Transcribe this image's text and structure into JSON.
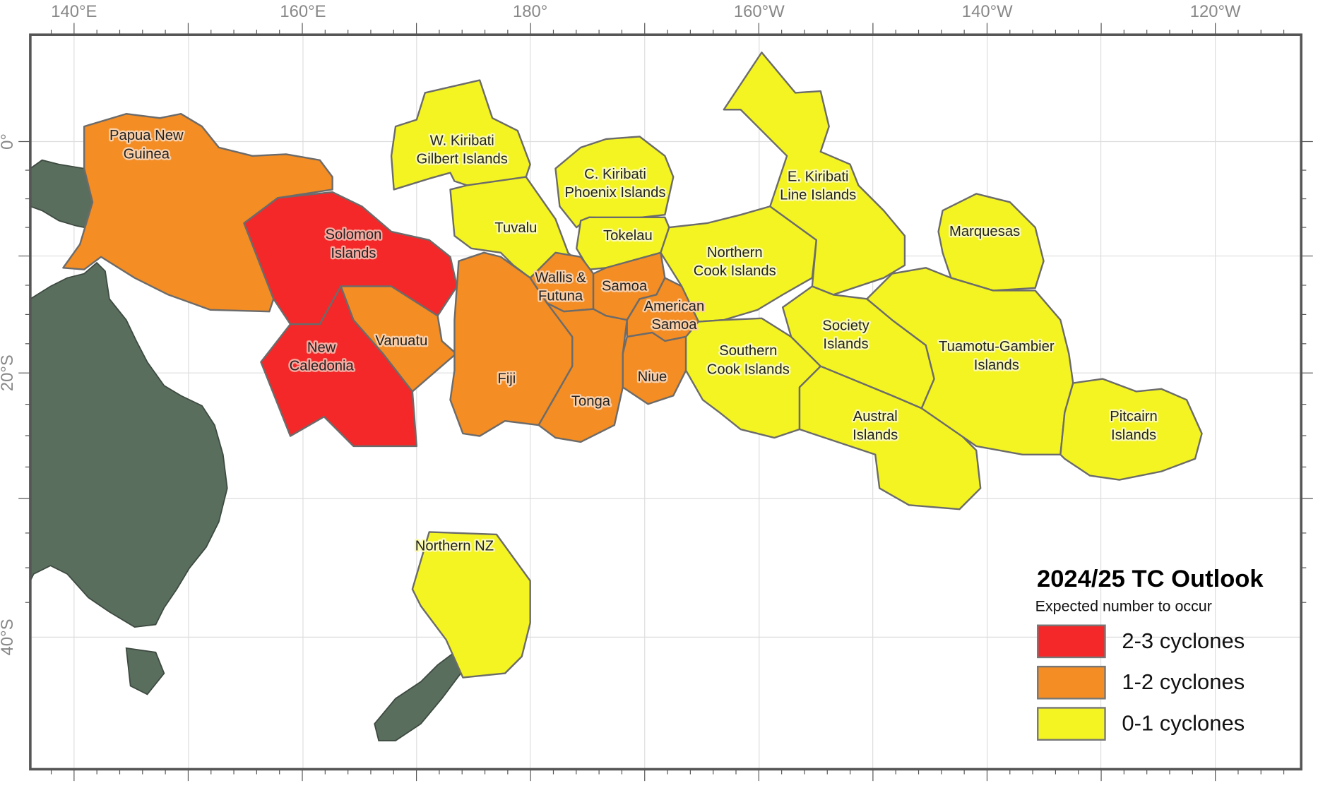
{
  "map": {
    "lon_labels": [
      "140°E",
      "160°E",
      "180°",
      "160°W",
      "140°W",
      "120°W"
    ],
    "lat_labels": [
      "0°",
      "20°S",
      "40°S"
    ],
    "colors": {
      "land": "#5a6e5e",
      "border": "#6b6b6b",
      "grid": "#dddddd"
    }
  },
  "legend": {
    "title": "2024/25 TC Outlook",
    "subtitle": "Expected number to occur",
    "items": [
      {
        "label": "2-3 cyclones",
        "color": "#f42828",
        "halo": "#f7aaa0"
      },
      {
        "label": "1-2 cyclones",
        "color": "#f38d24",
        "halo": "#f9cfa8"
      },
      {
        "label": "0-1 cyclones",
        "color": "#f4f423",
        "halo": "#fafab0"
      }
    ]
  },
  "regions": [
    {
      "name": "Papua New Guinea",
      "lines": [
        "Papua New",
        "Guinea"
      ],
      "category": 1
    },
    {
      "name": "Solomon Islands",
      "lines": [
        "Solomon",
        "Islands"
      ],
      "category": 0
    },
    {
      "name": "New Caledonia",
      "lines": [
        "New",
        "Caledonia"
      ],
      "category": 0
    },
    {
      "name": "Vanuatu",
      "lines": [
        "Vanuatu"
      ],
      "category": 1
    },
    {
      "name": "W. Kiribati Gilbert Islands",
      "lines": [
        "W. Kiribati",
        "Gilbert Islands"
      ],
      "category": 2
    },
    {
      "name": "Tuvalu",
      "lines": [
        "Tuvalu"
      ],
      "category": 2
    },
    {
      "name": "C. Kiribati Phoenix Islands",
      "lines": [
        "C. Kiribati",
        "Phoenix Islands"
      ],
      "category": 2
    },
    {
      "name": "Tokelau",
      "lines": [
        "Tokelau"
      ],
      "category": 2
    },
    {
      "name": "Fiji",
      "lines": [
        "Fiji"
      ],
      "category": 1
    },
    {
      "name": "Wallis & Futuna",
      "lines": [
        "Wallis &",
        "Futuna"
      ],
      "category": 1
    },
    {
      "name": "Samoa",
      "lines": [
        "Samoa"
      ],
      "category": 1
    },
    {
      "name": "Tonga",
      "lines": [
        "Tonga"
      ],
      "category": 1
    },
    {
      "name": "American Samoa",
      "lines": [
        "American",
        "Samoa"
      ],
      "category": 1
    },
    {
      "name": "Niue",
      "lines": [
        "Niue"
      ],
      "category": 1
    },
    {
      "name": "Northern NZ",
      "lines": [
        "Northern NZ"
      ],
      "category": 2
    },
    {
      "name": "Northern Cook Islands",
      "lines": [
        "Northern",
        "Cook Islands"
      ],
      "category": 2
    },
    {
      "name": "E. Kiribati Line Islands",
      "lines": [
        "E. Kiribati",
        "Line Islands"
      ],
      "category": 2
    },
    {
      "name": "Southern Cook Islands",
      "lines": [
        "Southern",
        "Cook Islands"
      ],
      "category": 2
    },
    {
      "name": "Society Islands",
      "lines": [
        "Society",
        "Islands"
      ],
      "category": 2
    },
    {
      "name": "Austral Islands",
      "lines": [
        "Austral",
        "Islands"
      ],
      "category": 2
    },
    {
      "name": "Marquesas",
      "lines": [
        "Marquesas"
      ],
      "category": 2
    },
    {
      "name": "Tuamotu-Gambier Islands",
      "lines": [
        "Tuamotu-Gambier",
        "Islands"
      ],
      "category": 2
    },
    {
      "name": "Pitcairn Islands",
      "lines": [
        "Pitcairn",
        "Islands"
      ],
      "category": 2
    }
  ]
}
